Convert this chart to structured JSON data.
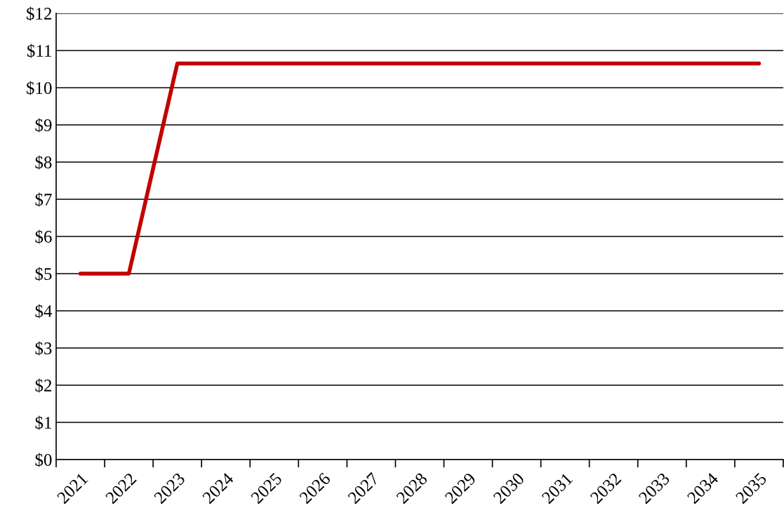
{
  "chart_data": {
    "type": "line",
    "categories": [
      "2021",
      "2022",
      "2023",
      "2024",
      "2025",
      "2026",
      "2027",
      "2028",
      "2029",
      "2030",
      "2031",
      "2032",
      "2033",
      "2034",
      "2035"
    ],
    "series": [
      {
        "color": "#c00000",
        "values": [
          5,
          5,
          10.65,
          10.65,
          10.65,
          10.65,
          10.65,
          10.65,
          10.65,
          10.65,
          10.65,
          10.65,
          10.65,
          10.65,
          10.65
        ]
      }
    ],
    "ylim": [
      0,
      12
    ],
    "yticks": [
      {
        "value": 0,
        "label": "$0"
      },
      {
        "value": 1,
        "label": "$1"
      },
      {
        "value": 2,
        "label": "$2"
      },
      {
        "value": 3,
        "label": "$3"
      },
      {
        "value": 4,
        "label": "$4"
      },
      {
        "value": 5,
        "label": "$5"
      },
      {
        "value": 6,
        "label": "$6"
      },
      {
        "value": 7,
        "label": "$7"
      },
      {
        "value": 8,
        "label": "$8"
      },
      {
        "value": 9,
        "label": "$9"
      },
      {
        "value": 10,
        "label": "$10"
      },
      {
        "value": 11,
        "label": "$11"
      },
      {
        "value": 12,
        "label": "$12"
      }
    ],
    "grid": "y",
    "marker": "none",
    "line_style": "solid"
  }
}
